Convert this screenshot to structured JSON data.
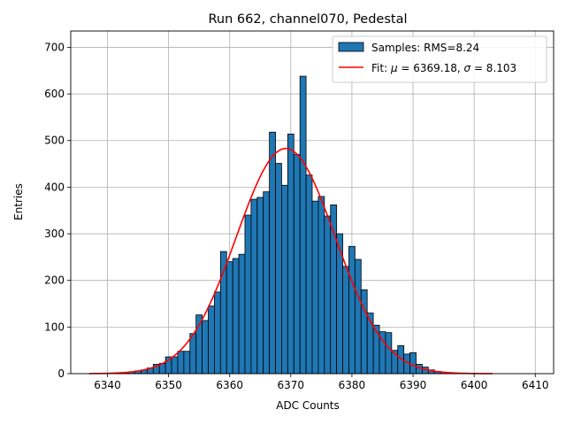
{
  "chart_data": {
    "type": "bar",
    "title": "Run 662, channel070, Pedestal",
    "xlabel": "ADC Counts",
    "ylabel": "Entries",
    "xlim": [
      6334,
      6413
    ],
    "ylim": [
      0,
      735
    ],
    "xticks": [
      6340,
      6350,
      6360,
      6370,
      6380,
      6390,
      6400,
      6410
    ],
    "yticks": [
      0,
      100,
      200,
      300,
      400,
      500,
      600,
      700
    ],
    "grid": true,
    "legend_position": "top-right",
    "bin_width": 1,
    "series": [
      {
        "name": "Samples: RMS=8.24",
        "kind": "histogram",
        "color": "#1f77b4",
        "edgecolor": "#000000",
        "x": [
          6342,
          6343,
          6344,
          6345,
          6346,
          6347,
          6348,
          6349,
          6350,
          6351,
          6352,
          6353,
          6354,
          6355,
          6356,
          6357,
          6358,
          6359,
          6360,
          6361,
          6362,
          6363,
          6364,
          6365,
          6366,
          6367,
          6368,
          6369,
          6370,
          6371,
          6372,
          6373,
          6374,
          6375,
          6376,
          6377,
          6378,
          6379,
          6380,
          6381,
          6382,
          6383,
          6384,
          6385,
          6386,
          6387,
          6388,
          6389,
          6390,
          6391,
          6392,
          6393,
          6394,
          6395,
          6396,
          6397,
          6398
        ],
        "values": [
          1,
          2,
          4,
          6,
          8,
          12,
          20,
          22,
          36,
          36,
          48,
          48,
          86,
          126,
          114,
          145,
          175,
          262,
          240,
          247,
          256,
          340,
          374,
          378,
          390,
          518,
          451,
          404,
          514,
          470,
          638,
          426,
          370,
          380,
          338,
          362,
          300,
          230,
          273,
          245,
          180,
          130,
          104,
          90,
          88,
          50,
          60,
          42,
          45,
          20,
          14,
          8,
          5,
          3,
          2,
          1,
          1
        ]
      },
      {
        "name": "Fit: μ = 6369.18, σ = 8.103",
        "kind": "gaussian",
        "color": "#ff0000",
        "mu": 6369.18,
        "sigma": 8.103,
        "amplitude": 483,
        "x_range": [
          6337,
          6403
        ]
      }
    ],
    "legend": {
      "hist_label": "Samples: RMS=8.24",
      "fit_label_prefix": "Fit: ",
      "mu_symbol": "μ",
      "fit_label_mid": " = 6369.18, ",
      "sigma_symbol": "σ",
      "fit_label_suffix": " = 8.103"
    }
  }
}
